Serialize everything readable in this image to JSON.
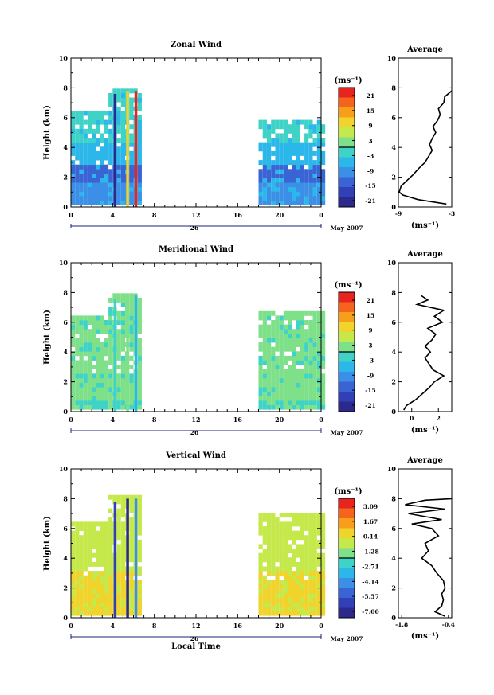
{
  "figure": {
    "x_axis_title": "Local Time",
    "y_axis_title": "Height (km)",
    "date_label": "May 2007",
    "day_label": "26",
    "unit_label": "(ms⁻¹)",
    "average_title": "Average"
  },
  "chart_data": [
    {
      "type": "heatmap",
      "title": "Zonal Wind",
      "xlabel": "",
      "ylabel": "Height (km)",
      "xlim": [
        0,
        24
      ],
      "ylim": [
        0,
        10
      ],
      "x_ticks": [
        "0",
        "4",
        "8",
        "12",
        "16",
        "20",
        "0"
      ],
      "y_ticks": [
        "0",
        "2",
        "4",
        "6",
        "8",
        "10"
      ],
      "data_segments": [
        {
          "x_start": 0.0,
          "x_end": 6.5,
          "height_top_km": 7.8
        },
        {
          "x_start": 18.0,
          "x_end": 24.0,
          "height_top_km": 6.0
        }
      ],
      "colorbar": {
        "unit": "(ms⁻¹)",
        "tick_labels": [
          "21",
          "15",
          "9",
          "3",
          "-3",
          "-9",
          "-15",
          "-21"
        ],
        "colors": [
          "#e8241f",
          "#f5631c",
          "#f79f1b",
          "#f0d32b",
          "#c5e84a",
          "#7fe08a",
          "#3fd3c7",
          "#2cb7ea",
          "#3c8fe6",
          "#3a63d4",
          "#3240b8",
          "#2b2a8c"
        ]
      },
      "profile": {
        "title": "Average",
        "xlabel": "(ms⁻¹)",
        "xlim": [
          -9,
          -3
        ],
        "x_ticks": [
          "-9",
          "-3"
        ],
        "heights_km": [
          0.2,
          0.5,
          0.8,
          1.0,
          1.4,
          1.8,
          2.2,
          2.6,
          3.0,
          3.4,
          3.8,
          4.2,
          4.6,
          5.0,
          5.4,
          5.8,
          6.2,
          6.6,
          7.0,
          7.4,
          7.8
        ],
        "values": [
          -3.6,
          -6.8,
          -8.5,
          -8.9,
          -8.7,
          -8.0,
          -7.3,
          -6.7,
          -6.0,
          -5.6,
          -5.2,
          -5.5,
          -5.2,
          -4.8,
          -5.1,
          -4.6,
          -4.3,
          -4.5,
          -3.9,
          -3.8,
          -3.0
        ]
      }
    },
    {
      "type": "heatmap",
      "title": "Meridional Wind",
      "xlabel": "",
      "ylabel": "Height (km)",
      "xlim": [
        0,
        24
      ],
      "ylim": [
        0,
        10
      ],
      "x_ticks": [
        "0",
        "4",
        "8",
        "12",
        "16",
        "20",
        "0"
      ],
      "y_ticks": [
        "0",
        "2",
        "4",
        "6",
        "8",
        "10"
      ],
      "data_segments": [
        {
          "x_start": 0.0,
          "x_end": 6.5,
          "height_top_km": 7.8
        },
        {
          "x_start": 18.0,
          "x_end": 24.0,
          "height_top_km": 6.8
        }
      ],
      "colorbar": {
        "unit": "(ms⁻¹)",
        "tick_labels": [
          "21",
          "15",
          "9",
          "3",
          "-3",
          "-9",
          "-15",
          "-21"
        ],
        "colors": [
          "#e8241f",
          "#f5631c",
          "#f79f1b",
          "#f0d32b",
          "#c5e84a",
          "#7fe08a",
          "#3fd3c7",
          "#2cb7ea",
          "#3c8fe6",
          "#3a63d4",
          "#3240b8",
          "#2b2a8c"
        ]
      },
      "profile": {
        "title": "Average",
        "xlabel": "(ms⁻¹)",
        "xlim": [
          -1,
          3
        ],
        "x_ticks": [
          "0",
          "2"
        ],
        "heights_km": [
          0.1,
          0.4,
          0.8,
          1.2,
          1.6,
          2.0,
          2.4,
          2.8,
          3.2,
          3.6,
          4.0,
          4.4,
          4.8,
          5.2,
          5.6,
          6.0,
          6.4,
          6.8,
          7.2,
          7.5,
          7.8
        ],
        "values": [
          -0.6,
          -0.4,
          0.3,
          0.8,
          1.3,
          1.7,
          2.4,
          1.6,
          1.3,
          1.0,
          1.4,
          1.0,
          1.5,
          1.8,
          1.2,
          2.3,
          1.7,
          2.4,
          0.4,
          1.2,
          0.7
        ]
      }
    },
    {
      "type": "heatmap",
      "title": "Vertical Wind",
      "xlabel": "Local Time",
      "ylabel": "Height (km)",
      "xlim": [
        0,
        24
      ],
      "ylim": [
        0,
        10
      ],
      "x_ticks": [
        "0",
        "4",
        "8",
        "12",
        "16",
        "20",
        "0"
      ],
      "y_ticks": [
        "0",
        "2",
        "4",
        "6",
        "8",
        "10"
      ],
      "data_segments": [
        {
          "x_start": 0.0,
          "x_end": 6.5,
          "height_top_km": 8.0
        },
        {
          "x_start": 18.0,
          "x_end": 24.0,
          "height_top_km": 7.2
        }
      ],
      "colorbar": {
        "unit": "(ms⁻¹)",
        "tick_labels": [
          "3.09",
          "1.67",
          "0.14",
          "-1.28",
          "-2.71",
          "-4.14",
          "-5.57",
          "-7.00"
        ],
        "colors": [
          "#e8241f",
          "#f5631c",
          "#f79f1b",
          "#f0d32b",
          "#c5e84a",
          "#7fe08a",
          "#3fd3c7",
          "#2cb7ea",
          "#3c8fe6",
          "#3a63d4",
          "#3240b8",
          "#2b2a8c"
        ]
      },
      "profile": {
        "title": "Average",
        "xlabel": "(ms⁻¹)",
        "xlim": [
          -1.9,
          -0.3
        ],
        "x_ticks": [
          "-1.8",
          "-0.4"
        ],
        "heights_km": [
          0.1,
          0.4,
          0.8,
          1.2,
          1.6,
          2.0,
          2.5,
          3.0,
          3.5,
          4.0,
          4.5,
          5.0,
          5.5,
          6.0,
          6.3,
          6.6,
          7.0,
          7.3,
          7.6,
          7.9,
          8.0
        ],
        "values": [
          -0.5,
          -0.8,
          -0.6,
          -0.55,
          -0.6,
          -0.5,
          -0.55,
          -0.75,
          -0.9,
          -1.2,
          -1.0,
          -1.1,
          -0.7,
          -0.9,
          -1.5,
          -0.6,
          -1.6,
          -0.5,
          -1.7,
          -1.1,
          -0.3
        ]
      }
    }
  ]
}
